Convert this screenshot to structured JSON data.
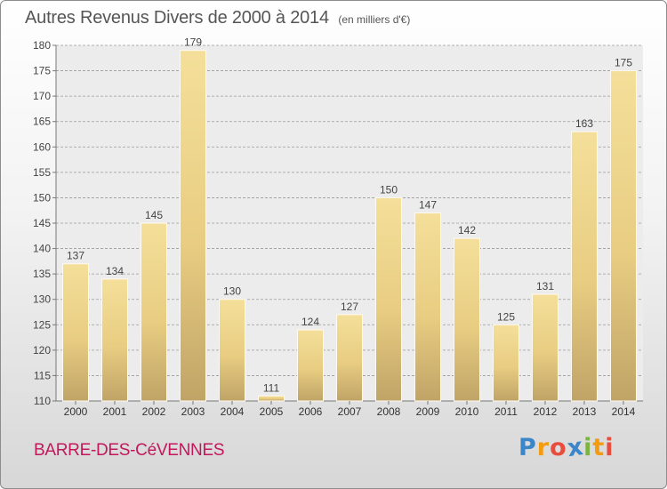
{
  "chart_data": {
    "type": "bar",
    "title": "Autres Revenus Divers de 2000 à 2014",
    "subtitle": "(en milliers d'€)",
    "categories": [
      "2000",
      "2001",
      "2002",
      "2003",
      "2004",
      "2005",
      "2006",
      "2007",
      "2008",
      "2009",
      "2010",
      "2011",
      "2012",
      "2013",
      "2014"
    ],
    "values": [
      137,
      134,
      145,
      179,
      130,
      111,
      124,
      127,
      150,
      147,
      142,
      125,
      131,
      163,
      175
    ],
    "ylim": [
      110,
      180
    ],
    "yticks": [
      110,
      115,
      120,
      125,
      130,
      135,
      140,
      145,
      150,
      155,
      160,
      165,
      170,
      175,
      180
    ],
    "grid": true,
    "bar_color": "#e8cd82",
    "bar_color_light": "#f4df9a",
    "bar_color_dark": "#c0a467",
    "bar_edge": "#fffaf0"
  },
  "footer": {
    "location": "BARRE-DES-CéVENNES",
    "location_color": "#c2185b",
    "brand_letters": [
      "P",
      "r",
      "o",
      "x",
      "i",
      "t",
      "i"
    ],
    "brand_colors": [
      "#3a86c8",
      "#f39c12",
      "#e74c3c",
      "#3a86c8",
      "#7cb342",
      "#f39c12",
      "#e74c3c"
    ]
  }
}
